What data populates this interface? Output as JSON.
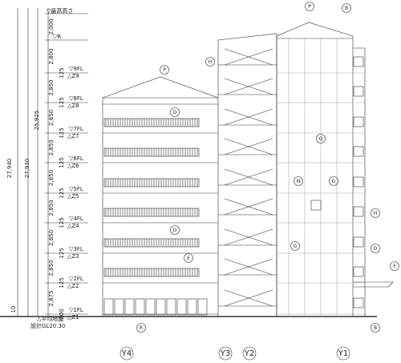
{
  "top_level": "▽最高高さ",
  "roof_level": "▽R",
  "floor_levels": [
    "▽9FL",
    "▽8FL",
    "▽7FL",
    "▽6FL",
    "▽5FL",
    "▽4FL",
    "▽3FL",
    "▽2FL",
    "▽1FL"
  ],
  "slab_marks": [
    "△Z9",
    "△Z8",
    "△Z7",
    "△Z6",
    "△Z5",
    "△Z4",
    "△Z3",
    "△Z2",
    "△Z1"
  ],
  "slab_offsets": [
    "125",
    "125",
    "125",
    "125",
    "125",
    "125",
    "125",
    "125",
    "300"
  ],
  "story_dims": [
    "2,000",
    "2,800",
    "2,850",
    "2,850",
    "2,850",
    "2,850",
    "2,850",
    "2,850",
    "2,850",
    "2,875"
  ],
  "total_dims": [
    "27,940",
    "27,930",
    "25,925"
  ],
  "ground_label": "△平均地盤",
  "design_gl": "設計GL20.30",
  "ground_offset": "10",
  "callouts": [
    "P",
    "B",
    "H",
    "P",
    "D",
    "Q",
    "N",
    "G",
    "H",
    "D",
    "O",
    "E",
    "G",
    "F",
    "R",
    "B"
  ],
  "grid_axes": [
    "Y4",
    "Y3",
    "Y2",
    "Y1"
  ]
}
